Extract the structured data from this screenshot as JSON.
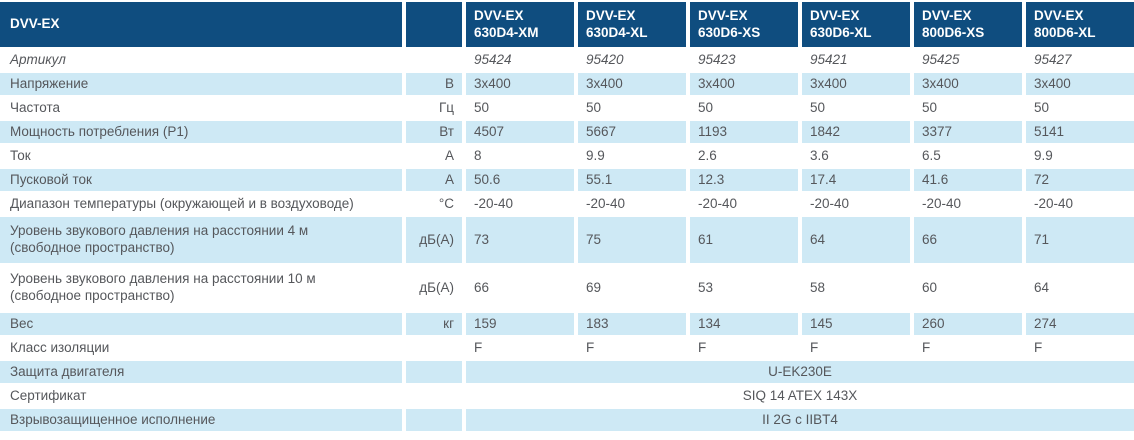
{
  "colors": {
    "header_bg": "#0f4d7f",
    "row_alt_bg": "#cee9f5",
    "text": "#55575b",
    "header_text": "#ffffff"
  },
  "table": {
    "title": "DVV-EX",
    "columns": [
      {
        "line1": "DVV-EX",
        "line2": "630D4-XM"
      },
      {
        "line1": "DVV-EX",
        "line2": "630D4-XL"
      },
      {
        "line1": "DVV-EX",
        "line2": "630D6-XS"
      },
      {
        "line1": "DVV-EX",
        "line2": "630D6-XL"
      },
      {
        "line1": "DVV-EX",
        "line2": "800D6-XS"
      },
      {
        "line1": "DVV-EX",
        "line2": "800D6-XL"
      }
    ],
    "rows": [
      {
        "label": "Артикул",
        "unit": "",
        "values": [
          "95424",
          "95420",
          "95423",
          "95421",
          "95425",
          "95427"
        ],
        "italic": true
      },
      {
        "label": "Напряжение",
        "unit": "В",
        "values": [
          "3x400",
          "3x400",
          "3x400",
          "3x400",
          "3x400",
          "3x400"
        ]
      },
      {
        "label": "Частота",
        "unit": "Гц",
        "values": [
          "50",
          "50",
          "50",
          "50",
          "50",
          "50"
        ]
      },
      {
        "label": "Мощность потребления (P1)",
        "unit": "Вт",
        "values": [
          "4507",
          "5667",
          "1193",
          "1842",
          "3377",
          "5141"
        ]
      },
      {
        "label": "Ток",
        "unit": "А",
        "values": [
          "8",
          "9.9",
          "2.6",
          "3.6",
          "6.5",
          "9.9"
        ]
      },
      {
        "label": "Пусковой ток",
        "unit": "А",
        "values": [
          "50.6",
          "55.1",
          "12.3",
          "17.4",
          "41.6",
          "72"
        ]
      },
      {
        "label": "Диапазон температуры (окружающей и в воздуховоде)",
        "unit": "°C",
        "values": [
          "-20-40",
          "-20-40",
          "-20-40",
          "-20-40",
          "-20-40",
          "-20-40"
        ]
      },
      {
        "label": "Уровень звукового давления на расстоянии 4 м\n(свободное пространство)",
        "unit": "дБ(А)",
        "values": [
          "73",
          "75",
          "61",
          "64",
          "66",
          "71"
        ],
        "tall": true
      },
      {
        "label": "Уровень звукового давления на расстоянии 10 м\n(свободное пространство)",
        "unit": "дБ(А)",
        "values": [
          "66",
          "69",
          "53",
          "58",
          "60",
          "64"
        ],
        "tall": true
      },
      {
        "label": "Вес",
        "unit": "кг",
        "values": [
          "159",
          "183",
          "134",
          "145",
          "260",
          "274"
        ]
      },
      {
        "label": "Класс изоляции",
        "unit": "",
        "values": [
          "F",
          "F",
          "F",
          "F",
          "F",
          "F"
        ]
      },
      {
        "label": "Защита двигателя",
        "unit": "",
        "span_value": "U-EK230E"
      },
      {
        "label": "Сертификат",
        "unit": "",
        "span_value": "SIQ 14 ATEX 143X"
      },
      {
        "label": "Взрывозащищенное исполнение",
        "unit": "",
        "span_value": "II 2G с IIBT4"
      }
    ]
  }
}
